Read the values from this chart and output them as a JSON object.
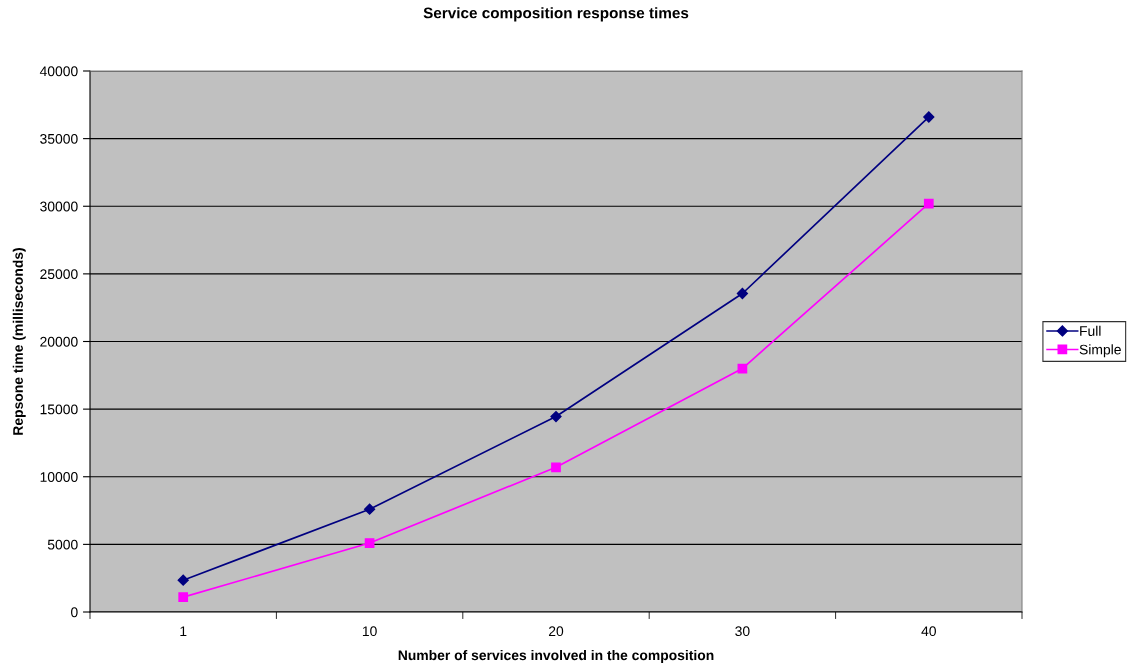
{
  "chart_data": {
    "type": "line",
    "title": "Service composition response times",
    "xlabel": "Number of services involved in the composition",
    "ylabel": "Repsone time (milliseconds)",
    "categories": [
      "1",
      "10",
      "20",
      "30",
      "40"
    ],
    "series": [
      {
        "name": "Full",
        "color": "#000080",
        "marker": "diamond",
        "values": [
          2350,
          7600,
          14450,
          23550,
          36600
        ]
      },
      {
        "name": "Simple",
        "color": "#ff00ff",
        "marker": "square",
        "values": [
          1100,
          5100,
          10700,
          18000,
          30200
        ]
      }
    ],
    "ylim": [
      0,
      40000
    ],
    "yticks": [
      0,
      5000,
      10000,
      15000,
      20000,
      25000,
      30000,
      35000,
      40000
    ],
    "grid": "y",
    "legend": "right",
    "line_style": "solid"
  }
}
